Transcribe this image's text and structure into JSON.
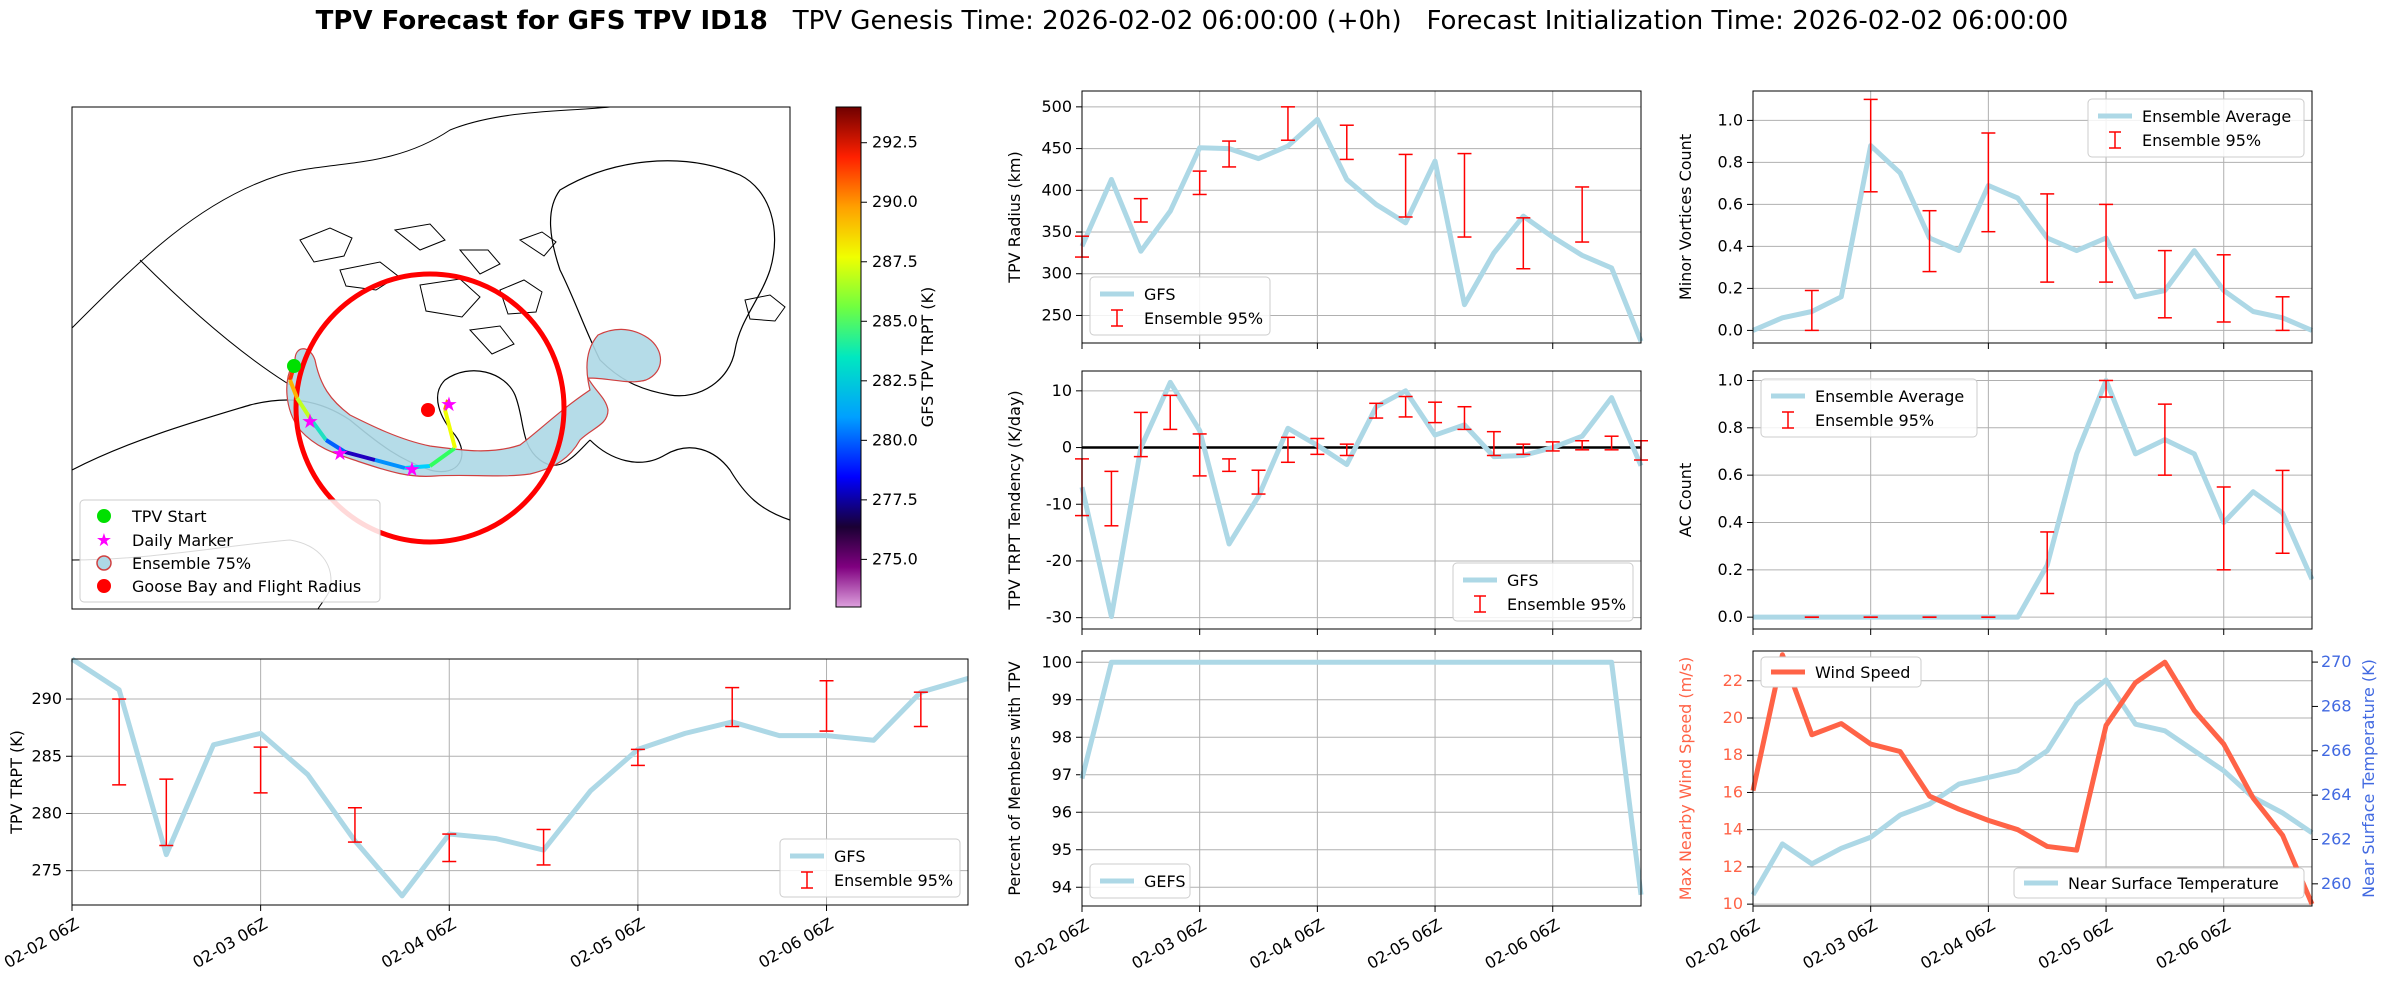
{
  "figure": {
    "title_bold": "TPV Forecast for GFS TPV ID18",
    "title_genesis": "TPV Genesis Time: 2026-02-02 06:00:00 (+0h)",
    "title_init": "Forecast Initialization Time: 2026-02-02 06:00:00"
  },
  "colors": {
    "gfs_line": "#add8e6",
    "ensemble_error": "#ff0000",
    "wind_speed": "#ff6347",
    "temp_axis": "#4169e1",
    "flight_radius": "#ff0000",
    "tpv_start": "#00e000",
    "daily_marker": "#ff00ff"
  },
  "map": {
    "colorbar_label": "GFS TPV TRPT (K)",
    "colorbar_ticks": [
      "292.5",
      "290.0",
      "287.5",
      "285.0",
      "282.5",
      "280.0",
      "277.5",
      "275.0"
    ],
    "colorbar_range": [
      273.0,
      294.0
    ],
    "legend": [
      "TPV Start",
      "Daily Marker",
      "Ensemble 75%",
      "Goose Bay and Flight Radius"
    ]
  },
  "chart_data": [
    {
      "id": "trpt",
      "type": "line",
      "x_ticks": [
        "02-02 06Z",
        "02-03 06Z",
        "02-04 06Z",
        "02-05 06Z",
        "02-06 06Z"
      ],
      "xlabel": "",
      "ylabel": "TPV TRPT (K)",
      "y_ticks": [
        "275",
        "280",
        "285",
        "290"
      ],
      "ylim": [
        272,
        293.5
      ],
      "legend": [
        "GFS",
        "Ensemble 95%"
      ],
      "legend_position": "lower-right",
      "gfs": [
        293.5,
        290.8,
        276.4,
        286.0,
        287.0,
        283.4,
        277.6,
        272.8,
        278.2,
        277.8,
        276.8,
        282.0,
        285.6,
        287.0,
        288.0,
        286.8,
        286.8,
        286.4,
        290.6,
        291.8
      ],
      "ensemble_95": [
        null,
        [
          282.5,
          290.0
        ],
        [
          277.2,
          283.0
        ],
        null,
        [
          281.8,
          285.8
        ],
        null,
        [
          277.5,
          280.5
        ],
        null,
        [
          275.8,
          278.2
        ],
        null,
        [
          275.5,
          278.6
        ],
        null,
        [
          284.2,
          285.6
        ],
        null,
        [
          287.6,
          291.0
        ],
        null,
        [
          287.2,
          291.6
        ],
        null,
        [
          287.6,
          290.6
        ],
        null
      ]
    },
    {
      "id": "radius",
      "type": "line",
      "x_ticks": [
        "02-02 06Z",
        "02-03 06Z",
        "02-04 06Z",
        "02-05 06Z",
        "02-06 06Z"
      ],
      "xlabel": "",
      "ylabel": "TPV Radius (km)",
      "y_ticks": [
        "250",
        "300",
        "350",
        "400",
        "450",
        "500"
      ],
      "ylim": [
        217,
        519
      ],
      "legend": [
        "GFS",
        "Ensemble 95%"
      ],
      "legend_position": "lower-left",
      "gfs": [
        333,
        413,
        327,
        375,
        451,
        450,
        438,
        453,
        485,
        413,
        383,
        361,
        435,
        263,
        325,
        369,
        344,
        322,
        307,
        219
      ],
      "ensemble_95": [
        [
          320,
          345
        ],
        null,
        [
          362,
          390
        ],
        null,
        [
          395,
          423
        ],
        [
          428,
          459
        ],
        null,
        [
          460,
          500
        ],
        null,
        [
          437,
          478
        ],
        null,
        [
          368,
          443
        ],
        null,
        [
          344,
          444
        ],
        null,
        [
          306,
          367
        ],
        null,
        [
          338,
          404
        ],
        null,
        null
      ]
    },
    {
      "id": "trpt_tendency",
      "type": "line",
      "x_ticks": [
        "02-02 06Z",
        "02-03 06Z",
        "02-04 06Z",
        "02-05 06Z",
        "02-06 06Z"
      ],
      "xlabel": "",
      "ylabel": "TPV TRPT Tendency (K/day)",
      "y_ticks": [
        "-30",
        "-20",
        "-10",
        "0",
        "10"
      ],
      "ylim": [
        -32,
        13.5
      ],
      "legend": [
        "GFS",
        "Ensemble 95%"
      ],
      "legend_position": "lower-right",
      "zero_line": true,
      "gfs": [
        -7.0,
        -29.8,
        0.0,
        11.5,
        3.0,
        -17.0,
        -8.6,
        3.4,
        0.4,
        -3.0,
        7.2,
        10.0,
        2.2,
        4.0,
        -1.6,
        -1.4,
        0.0,
        2.0,
        8.8,
        -3.2
      ],
      "ensemble_95": [
        [
          -12.0,
          -2.0
        ],
        [
          -13.8,
          -4.2
        ],
        [
          -1.6,
          6.2
        ],
        [
          3.2,
          9.2
        ],
        [
          -5.0,
          2.4
        ],
        [
          -4.2,
          -2.0
        ],
        [
          -8.2,
          -4.0
        ],
        [
          -2.6,
          1.8
        ],
        [
          -1.2,
          1.6
        ],
        [
          -1.4,
          0.6
        ],
        [
          5.2,
          7.8
        ],
        [
          5.4,
          9.0
        ],
        [
          4.4,
          8.0
        ],
        [
          3.2,
          7.2
        ],
        [
          -1.4,
          2.8
        ],
        [
          -1.2,
          0.6
        ],
        [
          -0.6,
          1.0
        ],
        [
          -0.4,
          1.2
        ],
        [
          -0.4,
          2.0
        ],
        [
          -2.2,
          1.2
        ]
      ]
    },
    {
      "id": "percent_members",
      "type": "line",
      "x_ticks": [
        "02-02 06Z",
        "02-03 06Z",
        "02-04 06Z",
        "02-05 06Z",
        "02-06 06Z"
      ],
      "xlabel": "",
      "ylabel": "Percent of Members with TPV",
      "y_ticks": [
        "94",
        "95",
        "96",
        "97",
        "98",
        "99",
        "100"
      ],
      "ylim": [
        93.5,
        100.3
      ],
      "legend": [
        "GEFS"
      ],
      "legend_position": "lower-left",
      "gfs": [
        96.9,
        100,
        100,
        100,
        100,
        100,
        100,
        100,
        100,
        100,
        100,
        100,
        100,
        100,
        100,
        100,
        100,
        100,
        100,
        93.8
      ]
    },
    {
      "id": "minor_vortices",
      "type": "line",
      "x_ticks": [
        "02-02 06Z",
        "02-03 06Z",
        "02-04 06Z",
        "02-05 06Z",
        "02-06 06Z"
      ],
      "xlabel": "",
      "ylabel": "Minor Vortices Count",
      "y_ticks": [
        "0.0",
        "0.2",
        "0.4",
        "0.6",
        "0.8",
        "1.0"
      ],
      "ylim": [
        -0.06,
        1.14
      ],
      "legend": [
        "Ensemble Average",
        "Ensemble 95%"
      ],
      "legend_position": "top-right",
      "gfs": [
        0.0,
        0.06,
        0.09,
        0.16,
        0.88,
        0.75,
        0.44,
        0.38,
        0.69,
        0.63,
        0.44,
        0.38,
        0.44,
        0.16,
        0.19,
        0.38,
        0.19,
        0.09,
        0.06,
        0.0
      ],
      "ensemble_95": [
        null,
        null,
        [
          0.0,
          0.19
        ],
        null,
        [
          0.66,
          1.1
        ],
        null,
        [
          0.28,
          0.57
        ],
        null,
        [
          0.47,
          0.94
        ],
        null,
        [
          0.23,
          0.65
        ],
        null,
        [
          0.23,
          0.6
        ],
        null,
        [
          0.06,
          0.38
        ],
        null,
        [
          0.04,
          0.36
        ],
        null,
        [
          0.0,
          0.16
        ],
        null
      ]
    },
    {
      "id": "ac_count",
      "type": "line",
      "x_ticks": [
        "02-02 06Z",
        "02-03 06Z",
        "02-04 06Z",
        "02-05 06Z",
        "02-06 06Z"
      ],
      "xlabel": "",
      "ylabel": "AC Count",
      "y_ticks": [
        "0.0",
        "0.2",
        "0.4",
        "0.6",
        "0.8",
        "1.0"
      ],
      "ylim": [
        -0.05,
        1.04
      ],
      "legend": [
        "Ensemble Average",
        "Ensemble 95%"
      ],
      "legend_position": "top-left",
      "gfs": [
        0,
        0,
        0,
        0,
        0,
        0,
        0,
        0,
        0,
        0.0,
        0.22,
        0.69,
        1.0,
        0.69,
        0.75,
        0.69,
        0.4,
        0.53,
        0.44,
        0.16
      ],
      "ensemble_95": [
        null,
        null,
        [
          0,
          0
        ],
        null,
        [
          0,
          0
        ],
        null,
        [
          0,
          0
        ],
        null,
        [
          0,
          0
        ],
        null,
        [
          0.1,
          0.36
        ],
        null,
        [
          0.93,
          1.0
        ],
        null,
        [
          0.6,
          0.9
        ],
        null,
        [
          0.2,
          0.55
        ],
        null,
        [
          0.27,
          0.62
        ],
        null
      ]
    },
    {
      "id": "wind_temp",
      "type": "line",
      "x_ticks": [
        "02-02 06Z",
        "02-03 06Z",
        "02-04 06Z",
        "02-05 06Z",
        "02-06 06Z"
      ],
      "xlabel": "",
      "ylabel": "Max Nearby Wind Speed (m/s)",
      "ylabel_right": "Near Surface Temperature (K)",
      "y_ticks": [
        "10",
        "12",
        "14",
        "16",
        "18",
        "20",
        "22"
      ],
      "ylim": [
        9.9,
        23.6
      ],
      "y_ticks_right": [
        "260",
        "262",
        "264",
        "266",
        "268",
        "270"
      ],
      "ylim_right": [
        259.0,
        270.5
      ],
      "series": [
        {
          "name": "Wind Speed",
          "axis": "left",
          "values": [
            16.1,
            23.4,
            19.1,
            19.7,
            18.6,
            18.2,
            15.8,
            15.1,
            14.5,
            14.0,
            13.1,
            12.9,
            19.6,
            21.9,
            23.0,
            20.4,
            18.6,
            15.7,
            13.7,
            10.0
          ]
        },
        {
          "name": "Near Surface Temperature",
          "axis": "right",
          "values": [
            259.5,
            261.8,
            260.9,
            261.6,
            262.1,
            263.1,
            263.6,
            264.5,
            264.8,
            265.1,
            266.0,
            268.1,
            269.2,
            267.2,
            266.9,
            266.0,
            265.1,
            263.9,
            263.2,
            262.3
          ]
        }
      ]
    }
  ]
}
